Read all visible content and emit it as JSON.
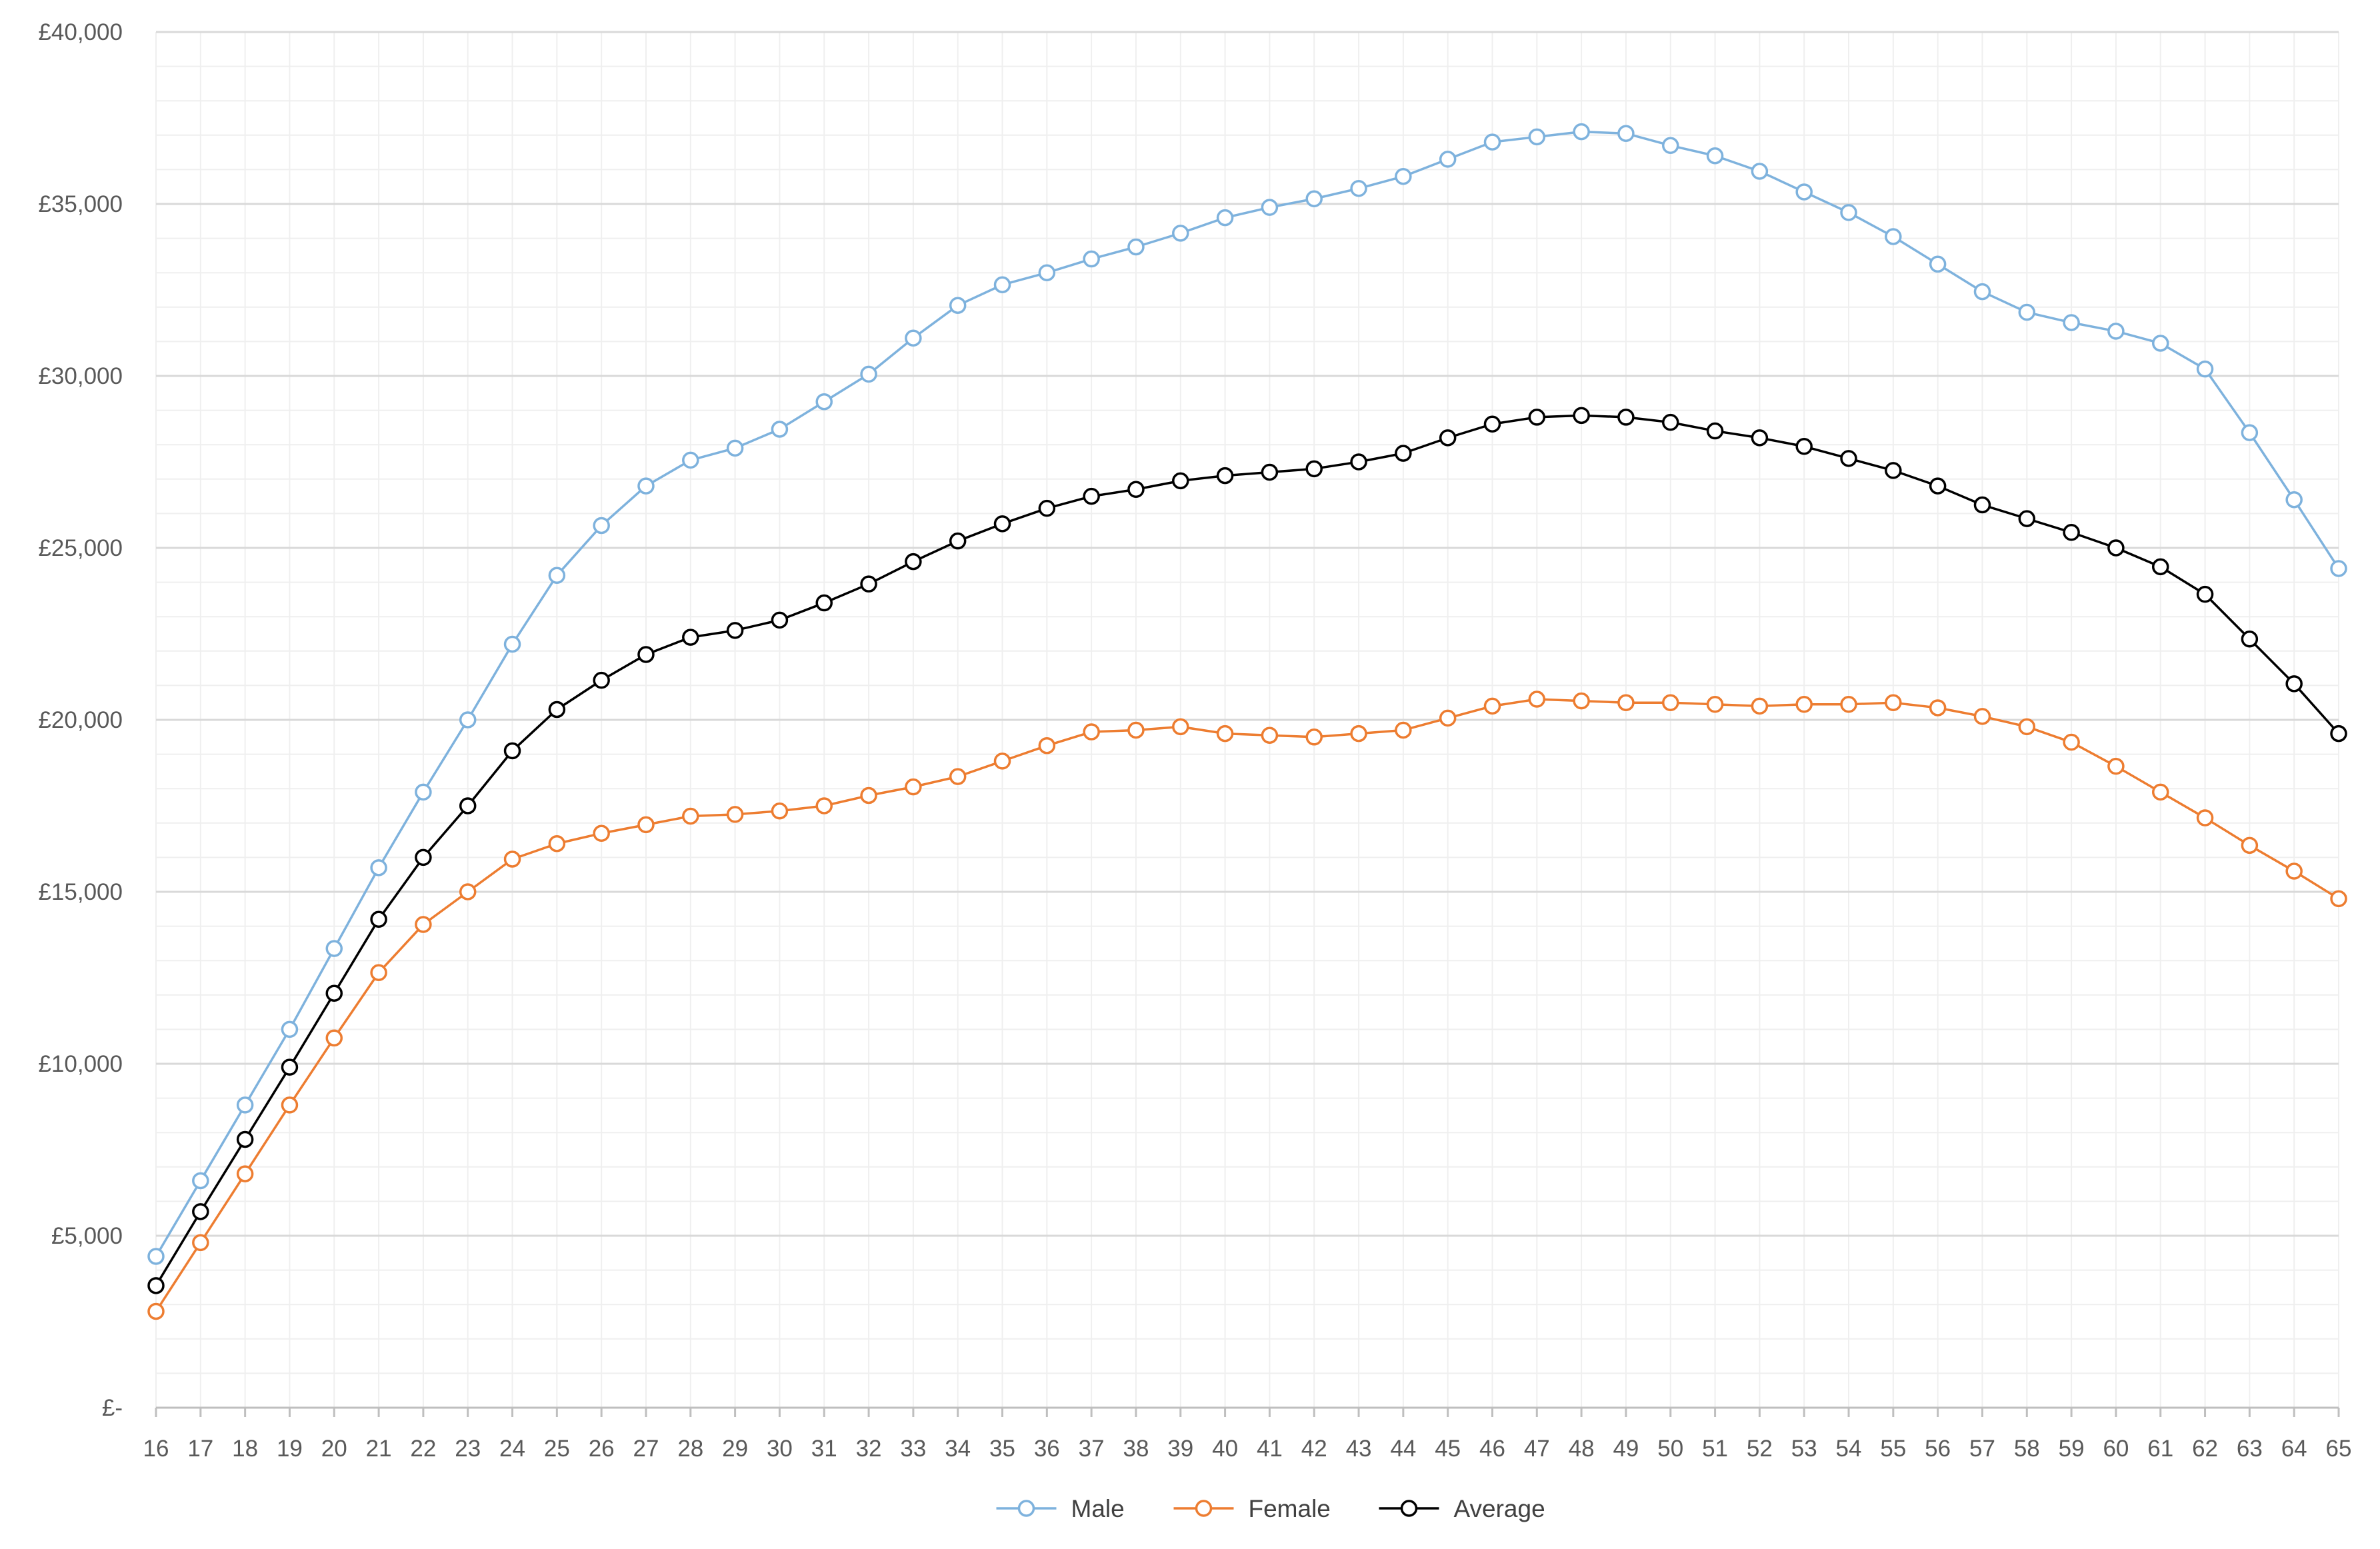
{
  "chart_data": {
    "type": "line",
    "title": "",
    "xlabel": "",
    "ylabel": "",
    "x": [
      16,
      17,
      18,
      19,
      20,
      21,
      22,
      23,
      24,
      25,
      26,
      27,
      28,
      29,
      30,
      31,
      32,
      33,
      34,
      35,
      36,
      37,
      38,
      39,
      40,
      41,
      42,
      43,
      44,
      45,
      46,
      47,
      48,
      49,
      50,
      51,
      52,
      53,
      54,
      55,
      56,
      57,
      58,
      59,
      60,
      61,
      62,
      63,
      64,
      65
    ],
    "ylim": [
      0,
      40000
    ],
    "y_ticks": [
      {
        "value": 0,
        "label": "£-"
      },
      {
        "value": 5000,
        "label": "£5,000"
      },
      {
        "value": 10000,
        "label": "£10,000"
      },
      {
        "value": 15000,
        "label": "£15,000"
      },
      {
        "value": 20000,
        "label": "£20,000"
      },
      {
        "value": 25000,
        "label": "£25,000"
      },
      {
        "value": 30000,
        "label": "£30,000"
      },
      {
        "value": 35000,
        "label": "£35,000"
      },
      {
        "value": 40000,
        "label": "£40,000"
      }
    ],
    "grid": true,
    "minor_grid": true,
    "legend_position": "bottom",
    "series": [
      {
        "name": "Male",
        "color": "#7eb2dd",
        "values": [
          4400,
          6600,
          8800,
          11000,
          13350,
          15700,
          17900,
          20000,
          22200,
          24200,
          25650,
          26800,
          27550,
          27900,
          28450,
          29250,
          30050,
          31100,
          32050,
          32650,
          33000,
          33400,
          33750,
          34150,
          34600,
          34900,
          35150,
          35450,
          35800,
          36300,
          36800,
          36950,
          37100,
          37050,
          36700,
          36400,
          35950,
          35350,
          34750,
          34050,
          33250,
          32450,
          31850,
          31550,
          31300,
          30950,
          30200,
          28350,
          26400,
          24400
        ]
      },
      {
        "name": "Female",
        "color": "#ed7d31",
        "values": [
          2800,
          4800,
          6800,
          8800,
          10750,
          12650,
          14050,
          15000,
          15950,
          16400,
          16700,
          16950,
          17200,
          17250,
          17350,
          17500,
          17800,
          18050,
          18350,
          18800,
          19250,
          19650,
          19700,
          19800,
          19600,
          19550,
          19500,
          19600,
          19700,
          20050,
          20400,
          20600,
          20550,
          20500,
          20500,
          20450,
          20400,
          20450,
          20450,
          20500,
          20350,
          20100,
          19800,
          19350,
          18650,
          17900,
          17150,
          16350,
          15600,
          14800
        ]
      },
      {
        "name": "Average",
        "color": "#000000",
        "values": [
          3550,
          5700,
          7800,
          9900,
          12050,
          14200,
          16000,
          17500,
          19100,
          20300,
          21150,
          21900,
          22400,
          22600,
          22900,
          23400,
          23950,
          24600,
          25200,
          25700,
          26150,
          26500,
          26700,
          26950,
          27100,
          27200,
          27300,
          27500,
          27750,
          28200,
          28600,
          28800,
          28850,
          28800,
          28650,
          28400,
          28200,
          27950,
          27600,
          27250,
          26800,
          26250,
          25850,
          25450,
          25000,
          24450,
          23650,
          22350,
          21050,
          19600
        ]
      }
    ]
  }
}
